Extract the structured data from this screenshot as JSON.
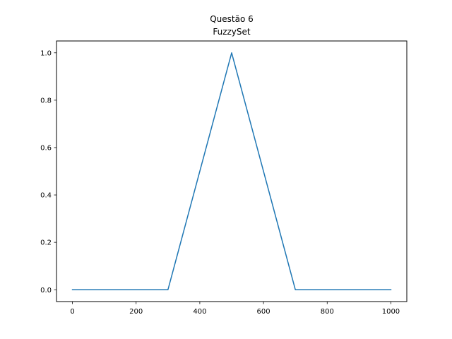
{
  "chart_data": {
    "type": "line",
    "title": "Questão 6",
    "subtitle": "FuzzySet",
    "xlabel": "",
    "ylabel": "",
    "xlim": [
      -50,
      1050
    ],
    "ylim": [
      -0.05,
      1.05
    ],
    "xticks": [
      0,
      200,
      400,
      600,
      800,
      1000
    ],
    "xtick_labels": [
      "0",
      "200",
      "400",
      "600",
      "800",
      "1000"
    ],
    "yticks": [
      0.0,
      0.2,
      0.4,
      0.6,
      0.8,
      1.0
    ],
    "ytick_labels": [
      "0.0",
      "0.2",
      "0.4",
      "0.6",
      "0.8",
      "1.0"
    ],
    "grid": false,
    "series": [
      {
        "color": "#1f77b4",
        "x": [
          0,
          300,
          500,
          700,
          1000
        ],
        "y": [
          0,
          0,
          1,
          0,
          0
        ]
      }
    ]
  }
}
